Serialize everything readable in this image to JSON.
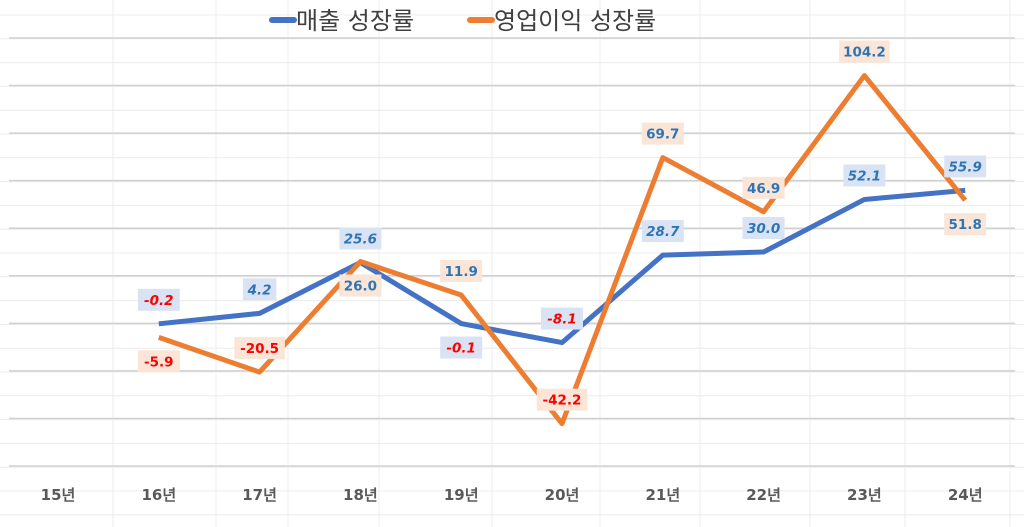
{
  "chart_data": {
    "type": "line",
    "title": "",
    "xlabel": "",
    "ylabel": "",
    "categories": [
      "15년",
      "16년",
      "17년",
      "18년",
      "19년",
      "20년",
      "21년",
      "22년",
      "23년",
      "24년"
    ],
    "ylim": [
      -60,
      120
    ],
    "ytick_step": 20,
    "y_tick_labels_shown": false,
    "grid": true,
    "legend_position": "top",
    "series": [
      {
        "name": "매출 성장률",
        "color": "#4472C4",
        "values": [
          null,
          -0.2,
          4.2,
          25.6,
          -0.1,
          -8.1,
          28.7,
          30.0,
          52.1,
          55.9
        ],
        "labels": [
          "",
          "-0.2",
          "4.2",
          "25.6",
          "-0.1",
          "-8.1",
          "28.7",
          "30.0",
          "52.1",
          "55.9"
        ],
        "label_bg": "#DAE3F3",
        "label_color": "#2E75B6",
        "label_negative_color": "#FF0000"
      },
      {
        "name": "영업이익 성장률",
        "color": "#ED7D31",
        "values": [
          null,
          -5.9,
          -20.5,
          26.0,
          11.9,
          -42.2,
          69.7,
          46.9,
          104.2,
          51.8
        ],
        "labels": [
          "",
          "-5.9",
          "-20.5",
          "26.0",
          "11.9",
          "-42.2",
          "69.7",
          "46.9",
          "104.2",
          "51.8"
        ],
        "label_bg": "#FBE5D6",
        "label_color": "#2E75B6",
        "label_negative_color": "#FF0000"
      }
    ]
  }
}
